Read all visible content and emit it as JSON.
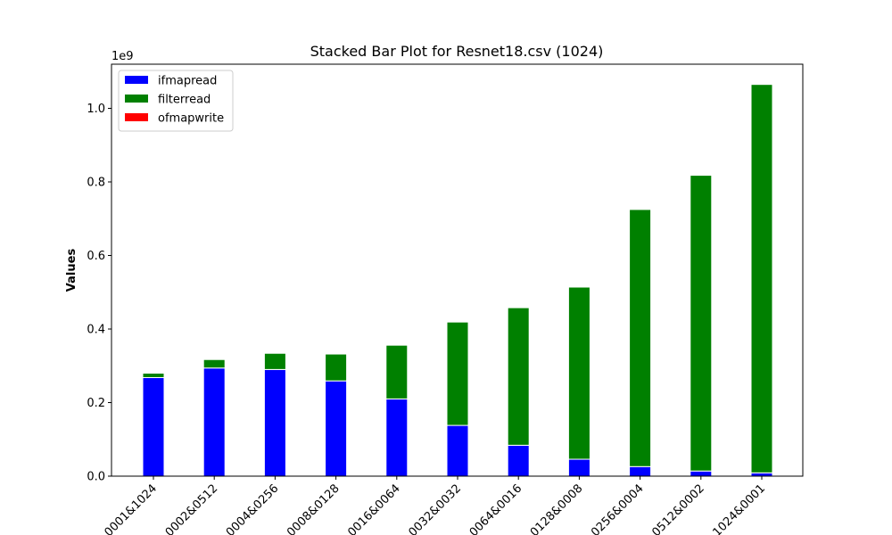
{
  "chart_data": {
    "type": "bar",
    "stacked": true,
    "title": "Stacked Bar Plot for Resnet18.csv (1024)",
    "xlabel": "",
    "ylabel": "Values",
    "y_scale_label": "1e9",
    "ylim": [
      0,
      1120000000
    ],
    "y_ticks": [
      0,
      200000000,
      400000000,
      600000000,
      800000000,
      1000000000
    ],
    "y_tick_labels": [
      "0.0",
      "0.2",
      "0.4",
      "0.6",
      "0.8",
      "1.0"
    ],
    "categories": [
      "0001&1024",
      "0002&0512",
      "0004&0256",
      "0008&0128",
      "0016&0064",
      "0032&0032",
      "0064&0016",
      "0128&0008",
      "0256&0004",
      "0512&0002",
      "1024&0001"
    ],
    "series": [
      {
        "name": "ifmapread",
        "color": "#0000ff",
        "values": [
          268000000,
          294000000,
          290000000,
          259000000,
          210000000,
          138000000,
          84000000,
          46000000,
          26000000,
          14000000,
          9000000
        ]
      },
      {
        "name": "filterread",
        "color": "#008000",
        "values": [
          12000000,
          23000000,
          44000000,
          73000000,
          146000000,
          281000000,
          374000000,
          468000000,
          699000000,
          804000000,
          1056000000
        ]
      },
      {
        "name": "ofmapwrite",
        "color": "#ff0000",
        "values": [
          0,
          0,
          0,
          0,
          0,
          0,
          0,
          0,
          0,
          0,
          0
        ]
      }
    ],
    "legend_position": "top-left",
    "grid": false
  }
}
